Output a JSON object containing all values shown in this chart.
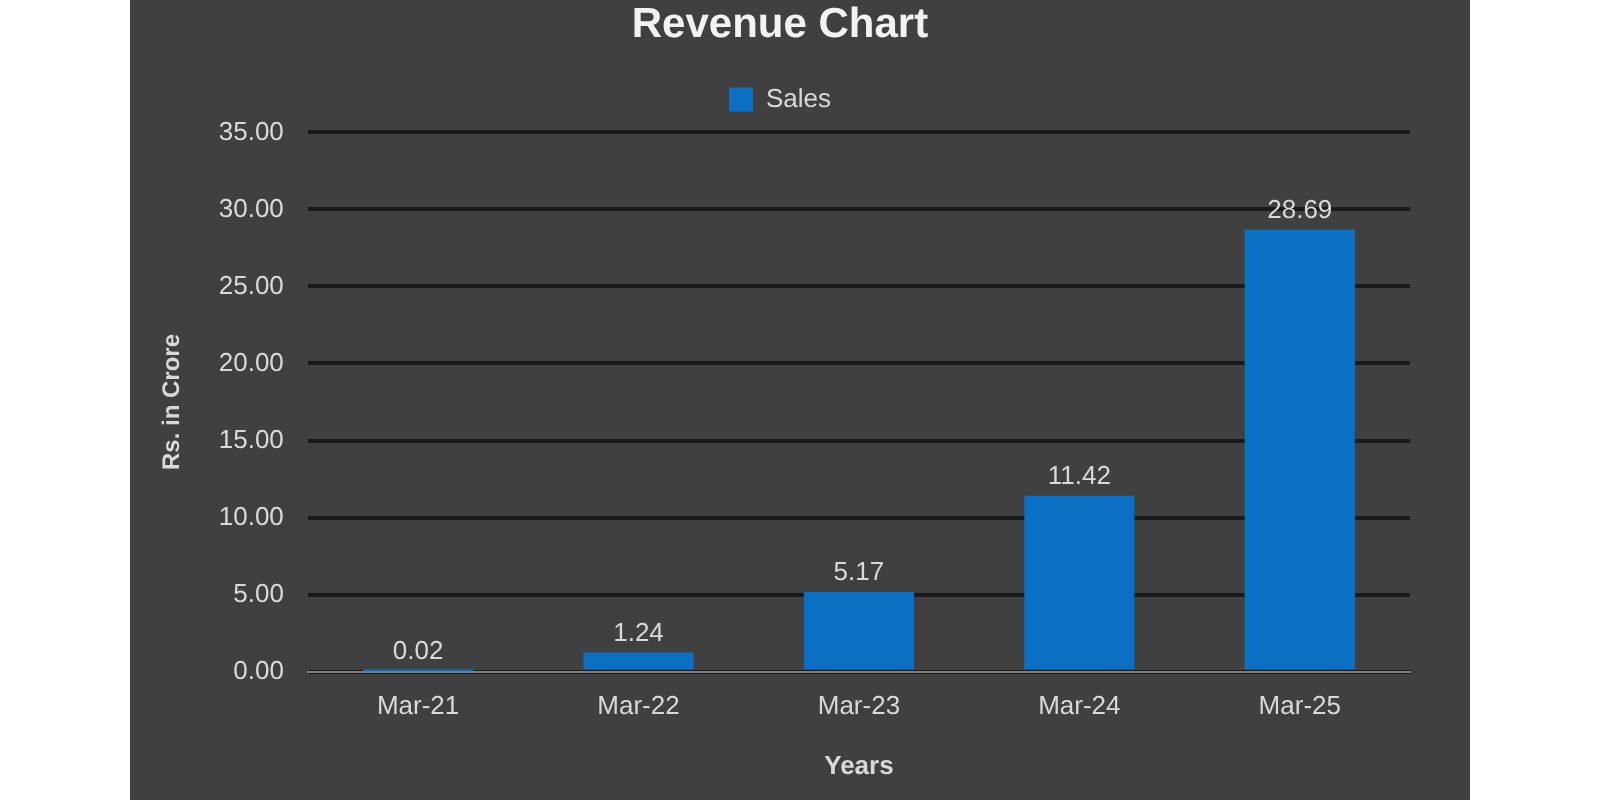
{
  "chart_data": {
    "type": "bar",
    "title": "Revenue Chart",
    "xlabel": "Years",
    "ylabel": "Rs. in Crore",
    "categories": [
      "Mar-21",
      "Mar-22",
      "Mar-23",
      "Mar-24",
      "Mar-25"
    ],
    "series": [
      {
        "name": "Sales",
        "color": "#0b6fc4",
        "values": [
          0.02,
          1.24,
          5.17,
          11.42,
          28.69
        ]
      }
    ],
    "ylim": [
      0,
      35
    ],
    "yticks": [
      {
        "value": 0,
        "label": "0.00"
      },
      {
        "value": 5,
        "label": "5.00"
      },
      {
        "value": 10,
        "label": "10.00"
      },
      {
        "value": 15,
        "label": "15.00"
      },
      {
        "value": 20,
        "label": "20.00"
      },
      {
        "value": 25,
        "label": "25.00"
      },
      {
        "value": 30,
        "label": "30.00"
      },
      {
        "value": 35,
        "label": "35.00"
      }
    ],
    "grid": "y",
    "legend": "top",
    "data_labels": true
  }
}
